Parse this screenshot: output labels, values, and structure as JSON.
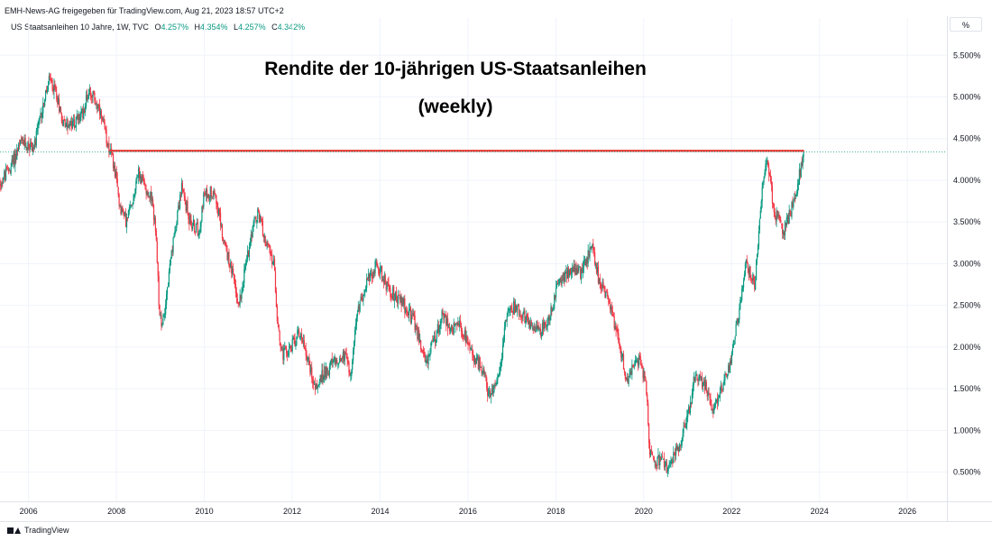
{
  "header": {
    "publisher": "EMH-News-AG freigegeben für TradingView.com, Aug 21, 2023 18:57 UTC+2"
  },
  "legend": {
    "symbol": "US Staatsanleihen 10 Jahre, 1W, TVC",
    "open_label": "O",
    "open": "4.257%",
    "high_label": "H",
    "high": "4.354%",
    "low_label": "L",
    "low": "4.257%",
    "close_label": "C",
    "close": "4.342%"
  },
  "unit_button": {
    "label": "%"
  },
  "chart_data": {
    "type": "candlestick",
    "title": "Rendite der 10-jährigen US-Staatsanleihen",
    "subtitle": "(weekly)",
    "x_tick_labels": [
      "2006",
      "2008",
      "2010",
      "2012",
      "2014",
      "2016",
      "2018",
      "2020",
      "2022",
      "2024",
      "2026"
    ],
    "y_tick_labels": [
      "0.500%",
      "1.000%",
      "1.500%",
      "2.000%",
      "2.500%",
      "3.000%",
      "3.500%",
      "4.000%",
      "4.500%",
      "5.000%",
      "5.500%"
    ],
    "y_ticks": [
      0.5,
      1.0,
      1.5,
      2.0,
      2.5,
      3.0,
      3.5,
      4.0,
      4.5,
      5.0,
      5.5
    ],
    "x_ticks": [
      2006,
      2008,
      2010,
      2012,
      2014,
      2016,
      2018,
      2020,
      2022,
      2024,
      2026
    ],
    "x_range": [
      2005.35,
      2026.9
    ],
    "y_range": [
      0.15,
      5.73
    ],
    "last_close": 4.342,
    "resistance_line": {
      "value": 4.354,
      "from": 2007.85,
      "to": 2023.65
    },
    "colors": {
      "up": "#089981",
      "down": "#f23645",
      "resistance": "#e53935",
      "close_line": "#089981",
      "grid": "#f0f3fa"
    },
    "weekly_path_anchors": [
      [
        2005.35,
        3.95
      ],
      [
        2005.6,
        4.15
      ],
      [
        2005.85,
        4.45
      ],
      [
        2006.15,
        4.4
      ],
      [
        2006.35,
        4.9
      ],
      [
        2006.5,
        5.2
      ],
      [
        2006.65,
        5.05
      ],
      [
        2006.8,
        4.7
      ],
      [
        2007.0,
        4.65
      ],
      [
        2007.25,
        4.8
      ],
      [
        2007.4,
        5.1
      ],
      [
        2007.55,
        4.95
      ],
      [
        2007.75,
        4.6
      ],
      [
        2007.95,
        4.2
      ],
      [
        2008.1,
        3.7
      ],
      [
        2008.25,
        3.5
      ],
      [
        2008.4,
        3.8
      ],
      [
        2008.5,
        4.1
      ],
      [
        2008.65,
        3.95
      ],
      [
        2008.8,
        3.8
      ],
      [
        2008.9,
        3.5
      ],
      [
        2009.0,
        2.4
      ],
      [
        2009.05,
        2.2
      ],
      [
        2009.2,
        2.8
      ],
      [
        2009.4,
        3.6
      ],
      [
        2009.5,
        3.9
      ],
      [
        2009.7,
        3.5
      ],
      [
        2009.9,
        3.4
      ],
      [
        2010.0,
        3.8
      ],
      [
        2010.25,
        3.9
      ],
      [
        2010.45,
        3.3
      ],
      [
        2010.65,
        2.9
      ],
      [
        2010.8,
        2.5
      ],
      [
        2010.9,
        2.8
      ],
      [
        2011.1,
        3.4
      ],
      [
        2011.25,
        3.6
      ],
      [
        2011.45,
        3.2
      ],
      [
        2011.6,
        3.0
      ],
      [
        2011.7,
        2.2
      ],
      [
        2011.8,
        1.9
      ],
      [
        2012.0,
        2.0
      ],
      [
        2012.2,
        2.2
      ],
      [
        2012.4,
        1.8
      ],
      [
        2012.55,
        1.5
      ],
      [
        2012.75,
        1.7
      ],
      [
        2012.95,
        1.8
      ],
      [
        2013.2,
        1.9
      ],
      [
        2013.35,
        1.7
      ],
      [
        2013.5,
        2.4
      ],
      [
        2013.65,
        2.7
      ],
      [
        2013.95,
        3.0
      ],
      [
        2014.2,
        2.7
      ],
      [
        2014.5,
        2.55
      ],
      [
        2014.8,
        2.3
      ],
      [
        2015.05,
        1.8
      ],
      [
        2015.2,
        2.0
      ],
      [
        2015.45,
        2.4
      ],
      [
        2015.65,
        2.2
      ],
      [
        2015.85,
        2.25
      ],
      [
        2016.1,
        1.9
      ],
      [
        2016.35,
        1.75
      ],
      [
        2016.5,
        1.4
      ],
      [
        2016.75,
        1.7
      ],
      [
        2016.9,
        2.4
      ],
      [
        2017.1,
        2.5
      ],
      [
        2017.4,
        2.3
      ],
      [
        2017.7,
        2.2
      ],
      [
        2017.9,
        2.4
      ],
      [
        2018.1,
        2.8
      ],
      [
        2018.4,
        2.95
      ],
      [
        2018.6,
        2.9
      ],
      [
        2018.85,
        3.2
      ],
      [
        2019.0,
        2.8
      ],
      [
        2019.2,
        2.6
      ],
      [
        2019.45,
        2.1
      ],
      [
        2019.65,
        1.55
      ],
      [
        2019.8,
        1.8
      ],
      [
        2019.95,
        1.85
      ],
      [
        2020.08,
        1.5
      ],
      [
        2020.16,
        0.7
      ],
      [
        2020.3,
        0.65
      ],
      [
        2020.6,
        0.55
      ],
      [
        2020.8,
        0.8
      ],
      [
        2021.0,
        1.1
      ],
      [
        2021.2,
        1.7
      ],
      [
        2021.4,
        1.55
      ],
      [
        2021.6,
        1.25
      ],
      [
        2021.8,
        1.55
      ],
      [
        2022.0,
        1.8
      ],
      [
        2022.2,
        2.5
      ],
      [
        2022.35,
        3.0
      ],
      [
        2022.55,
        2.75
      ],
      [
        2022.7,
        3.8
      ],
      [
        2022.82,
        4.25
      ],
      [
        2023.0,
        3.6
      ],
      [
        2023.2,
        3.4
      ],
      [
        2023.35,
        3.6
      ],
      [
        2023.5,
        3.85
      ],
      [
        2023.65,
        4.342
      ]
    ]
  },
  "footer": {
    "brand": "TradingView"
  }
}
